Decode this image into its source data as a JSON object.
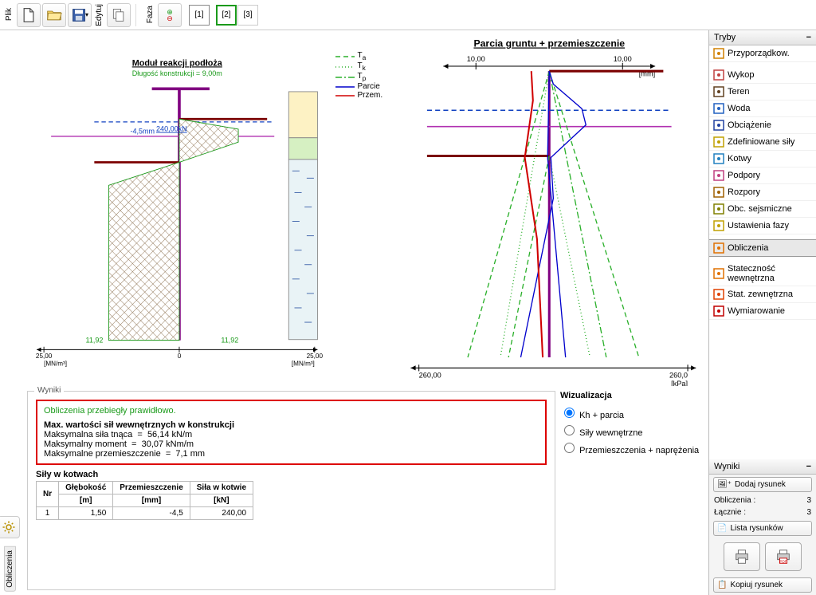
{
  "toolbar": {
    "plik_label": "Plik",
    "edytuj_label": "Edytuj",
    "faza_label": "Faza",
    "phases": [
      "[1]",
      "[2]",
      "[3]"
    ],
    "current_phase": 1
  },
  "chart_left": {
    "title": "Moduł reakcji podłoża",
    "subtitle": "Długość konstrukcji = 9,00m",
    "x_unit": "[MN/m³]",
    "x_ticks": [
      "25,00",
      "0",
      "25,00"
    ],
    "annotation_mm": "-4,5mm",
    "annotation_kn": "240,00kN",
    "depth_labels": [
      "11,92",
      "11,92"
    ],
    "legend": {
      "Ta": {
        "label": "T",
        "sub": "a",
        "color": "#2bb02b",
        "dash": "6,4"
      },
      "Tk": {
        "label": "T",
        "sub": "k",
        "color": "#2bb02b",
        "dash": "1,3"
      },
      "Tp": {
        "label": "T",
        "sub": "p",
        "color": "#2bb02b",
        "dash": "10,4,2,4"
      },
      "Parcie": {
        "label": "Parcie",
        "color": "#0000cc"
      },
      "Przem": {
        "label": "Przem.",
        "color": "#d00000"
      }
    },
    "colors": {
      "hatch": "#8b6f4e",
      "hatch_bg": "#ffffff",
      "wall": "#800080",
      "ground": "#7b0000",
      "dashblue": "#1040c0",
      "green": "#1a9a1a",
      "black": "#000"
    },
    "soil_colors": {
      "top": "#fdf2c4",
      "mid": "#d6f0c2",
      "low": "#e9f3f6",
      "water_marks": "#3a5fa8"
    }
  },
  "chart_right": {
    "title": "Parcia gruntu + przemieszczenie",
    "top_ticks": [
      "10,00",
      "10,00"
    ],
    "top_unit": "[mm]",
    "x_ticks": [
      "260,00",
      "260,0"
    ],
    "x_unit": "[kPa]",
    "colors": {
      "axis": "#000",
      "green": "#2bb02b",
      "blue": "#0000cc",
      "red": "#d00000",
      "purple": "#800080",
      "brown": "#7b0000",
      "dashblue": "#1040c0"
    }
  },
  "results": {
    "panel_title": "Wyniki",
    "ok_text": "Obliczenia przebiegły prawidłowo.",
    "heading": "Max. wartości sił wewnętrznych w konstrukcji",
    "lines": [
      {
        "name": "Maksymalna siła tnąca",
        "val": "56,14 kN/m"
      },
      {
        "name": "Maksymalny moment",
        "val": "30,07 kNm/m"
      },
      {
        "name": "Maksymalne przemieszczenie",
        "val": "7,1 mm"
      }
    ],
    "anchors_title": "Siły w kotwach",
    "anchors_cols": [
      "Nr",
      "Głębokość",
      "Przemieszczenie",
      "Siła w kotwie"
    ],
    "anchors_units": [
      "",
      "[m]",
      "[mm]",
      "[kN]"
    ],
    "anchors_rows": [
      [
        "1",
        "1,50",
        "-4,5",
        "240,00"
      ]
    ]
  },
  "viz": {
    "title": "Wizualizacja",
    "options": [
      "Kh + parcia",
      "Siły wewnętrzne",
      "Przemieszczenia + naprężenia"
    ],
    "selected": 0
  },
  "tryby": {
    "title": "Tryby",
    "items": [
      {
        "label": "Przyporządkow.",
        "icon": "assign",
        "color": "#d08000"
      },
      {
        "label": "Wykop",
        "icon": "excav",
        "color": "#c04040"
      },
      {
        "label": "Teren",
        "icon": "terrain",
        "color": "#604020"
      },
      {
        "label": "Woda",
        "icon": "water",
        "color": "#2060c0"
      },
      {
        "label": "Obciążenie",
        "icon": "load",
        "color": "#2040a0"
      },
      {
        "label": "Zdefiniowane siły",
        "icon": "force",
        "color": "#c0a000"
      },
      {
        "label": "Kotwy",
        "icon": "anchor",
        "color": "#2080c0"
      },
      {
        "label": "Podpory",
        "icon": "support",
        "color": "#c04080"
      },
      {
        "label": "Rozpory",
        "icon": "strut",
        "color": "#a06000"
      },
      {
        "label": "Obc. sejsmiczne",
        "icon": "seismic",
        "color": "#808000"
      },
      {
        "label": "Ustawienia fazy",
        "icon": "settings",
        "color": "#c0a000"
      },
      {
        "label": "Obliczenia",
        "icon": "calc",
        "color": "#e07000",
        "active": true
      },
      {
        "label": "Stateczność wewnętrzna",
        "icon": "stab",
        "color": "#e07000"
      },
      {
        "label": "Stat. zewnętrzna",
        "icon": "ext",
        "color": "#e04000"
      },
      {
        "label": "Wymiarowanie",
        "icon": "dim",
        "color": "#c00000"
      }
    ]
  },
  "wyniki_side": {
    "title": "Wyniki",
    "add_btn": "Dodaj rysunek",
    "rows": [
      {
        "k": "Obliczenia :",
        "v": "3"
      },
      {
        "k": "Łącznie :",
        "v": "3"
      }
    ],
    "list_btn": "Lista rysunków",
    "copy_btn": "Kopiuj rysunek"
  },
  "bottom_tab": "Obliczenia"
}
